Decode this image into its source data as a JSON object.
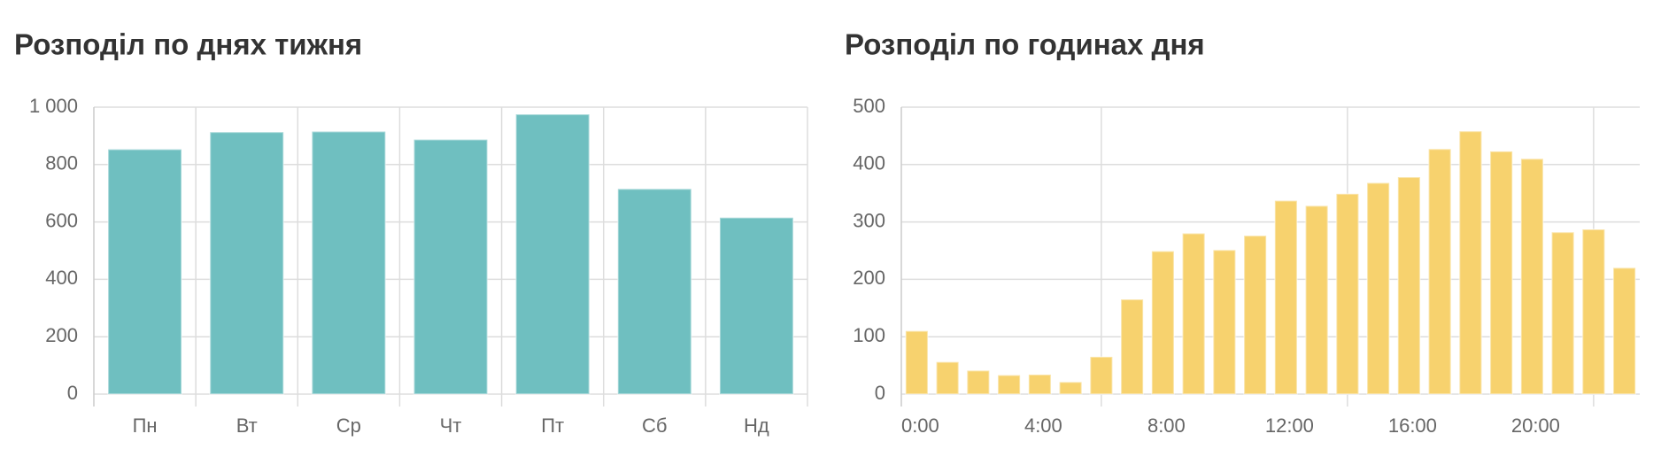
{
  "chart_data": [
    {
      "type": "bar",
      "title": "Розподіл по днях тижня",
      "categories": [
        "Пн",
        "Вт",
        "Ср",
        "Чт",
        "Пт",
        "Сб",
        "Нд"
      ],
      "values": [
        853,
        913,
        915,
        887,
        975,
        715,
        615
      ],
      "color": "#6fbfc0",
      "ylim": [
        0,
        1000
      ],
      "yticks": [
        0,
        200,
        400,
        600,
        800,
        {
          "value": 1000,
          "label": "1 000"
        }
      ],
      "grid": true
    },
    {
      "type": "bar",
      "title": "Розподіл по годинах дня",
      "categories": [
        "0:00",
        null,
        null,
        null,
        "4:00",
        null,
        null,
        null,
        "8:00",
        null,
        null,
        null,
        "12:00",
        null,
        null,
        null,
        "16:00",
        null,
        null,
        null,
        "20:00",
        null,
        null,
        null
      ],
      "values": [
        110,
        56,
        41,
        33,
        34,
        21,
        65,
        165,
        249,
        280,
        251,
        276,
        337,
        328,
        349,
        368,
        378,
        427,
        458,
        423,
        410,
        282,
        287,
        220
      ],
      "color": "#f7d26e",
      "ylim": [
        0,
        500
      ],
      "yticks": [
        0,
        100,
        200,
        300,
        400,
        500
      ],
      "grid": true
    }
  ]
}
